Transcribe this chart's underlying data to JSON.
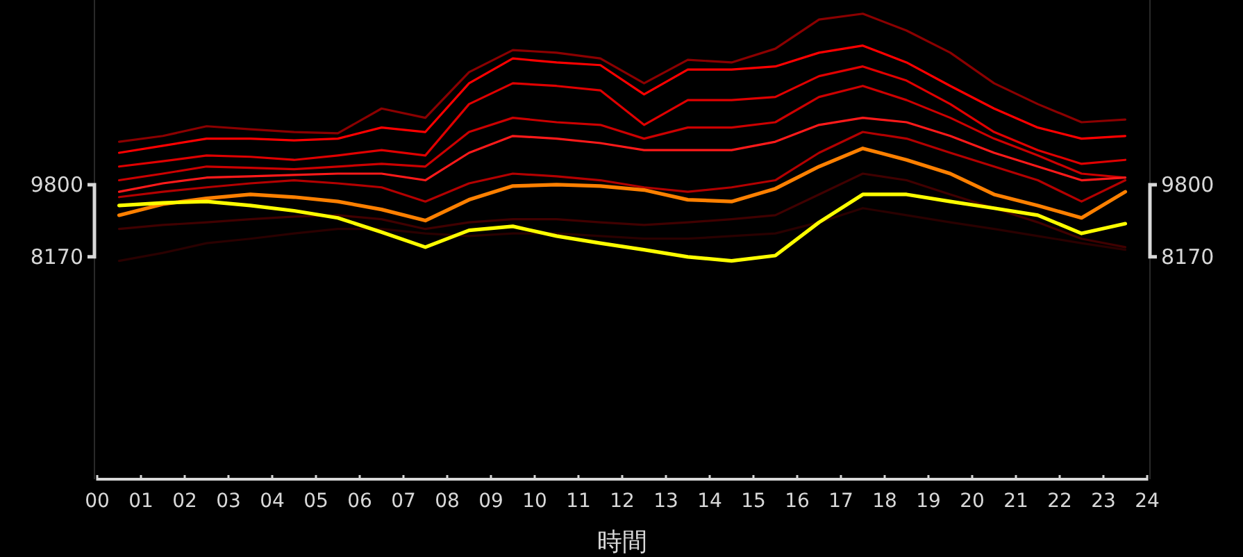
{
  "chart_data": {
    "type": "line",
    "xlabel": "時間",
    "x": [
      0.5,
      1.5,
      2.5,
      3.5,
      4.5,
      5.5,
      6.5,
      7.5,
      8.5,
      9.5,
      10.5,
      11.5,
      12.5,
      13.5,
      14.5,
      15.5,
      16.5,
      17.5,
      18.5,
      19.5,
      20.5,
      21.5,
      22.5,
      23.5
    ],
    "xlim": [
      0,
      24
    ],
    "xticks": [
      {
        "value": 0,
        "label": "00"
      },
      {
        "value": 1,
        "label": "01"
      },
      {
        "value": 2,
        "label": "02"
      },
      {
        "value": 3,
        "label": "03"
      },
      {
        "value": 4,
        "label": "04"
      },
      {
        "value": 5,
        "label": "05"
      },
      {
        "value": 6,
        "label": "06"
      },
      {
        "value": 7,
        "label": "07"
      },
      {
        "value": 8,
        "label": "08"
      },
      {
        "value": 9,
        "label": "09"
      },
      10,
      11,
      12,
      13,
      14,
      15,
      16,
      17,
      18,
      19,
      20,
      21,
      22,
      23,
      24
    ],
    "ylim": [
      3150,
      13970
    ],
    "yticks": [
      8170,
      9800
    ],
    "y2lim": [
      3150,
      13970
    ],
    "y2ticks": [
      8170,
      9800
    ],
    "series": [
      {
        "color": "#2a0000",
        "values": [
          8080,
          8260,
          8480,
          8580,
          8700,
          8800,
          8800,
          8700,
          8640,
          8700,
          8700,
          8640,
          8580,
          8580,
          8640,
          8700,
          8950,
          9270,
          9110,
          8950,
          8800,
          8640,
          8480,
          8330
        ]
      },
      {
        "color": "#400000",
        "values": [
          8800,
          8890,
          8950,
          9020,
          9080,
          9110,
          9020,
          8800,
          8950,
          9020,
          9020,
          8950,
          8890,
          8950,
          9020,
          9110,
          9580,
          10050,
          9900,
          9580,
          9270,
          8950,
          8580,
          8390
        ]
      },
      {
        "color": "#8b0000",
        "values": [
          10770,
          10900,
          11120,
          11050,
          10990,
          10960,
          11520,
          11310,
          12340,
          12840,
          12780,
          12650,
          12090,
          12620,
          12560,
          12870,
          13530,
          13660,
          13280,
          12780,
          12090,
          11620,
          11210,
          11270
        ]
      },
      {
        "color": "#b30000",
        "values": [
          9520,
          9640,
          9740,
          9830,
          9900,
          9830,
          9740,
          9420,
          9830,
          10050,
          9990,
          9900,
          9740,
          9640,
          9740,
          9900,
          10520,
          10990,
          10840,
          10520,
          10210,
          9900,
          9420,
          9900
        ]
      },
      {
        "color": "#cc0000",
        "values": [
          9900,
          10050,
          10210,
          10180,
          10150,
          10210,
          10270,
          10210,
          10990,
          11310,
          11210,
          11150,
          10840,
          11090,
          11090,
          11210,
          11780,
          12030,
          11710,
          11310,
          10840,
          10460,
          10050,
          9960
        ]
      },
      {
        "color": "#e00000",
        "values": [
          10210,
          10330,
          10460,
          10430,
          10360,
          10460,
          10580,
          10460,
          11620,
          12090,
          12030,
          11930,
          11150,
          11710,
          11710,
          11780,
          12250,
          12470,
          12150,
          11620,
          10990,
          10580,
          10270,
          10360
        ]
      },
      {
        "color": "#ff1a1a",
        "values": [
          9640,
          9830,
          9960,
          9990,
          10020,
          10050,
          10050,
          9900,
          10520,
          10900,
          10840,
          10740,
          10580,
          10580,
          10580,
          10770,
          11150,
          11310,
          11210,
          10900,
          10520,
          10210,
          9900,
          9960
        ]
      },
      {
        "color": "#ff0000",
        "values": [
          10520,
          10680,
          10840,
          10840,
          10800,
          10840,
          11090,
          10990,
          12090,
          12650,
          12560,
          12500,
          11840,
          12400,
          12400,
          12470,
          12780,
          12940,
          12560,
          12030,
          11520,
          11090,
          10840,
          10900
        ]
      },
      {
        "color": "#ff8000",
        "values": [
          9110,
          9360,
          9490,
          9580,
          9520,
          9420,
          9240,
          8990,
          9460,
          9770,
          9800,
          9770,
          9680,
          9460,
          9420,
          9710,
          10210,
          10620,
          10360,
          10050,
          9580,
          9330,
          9050,
          9640
        ]
      },
      {
        "color": "#ffff00",
        "values": [
          9330,
          9390,
          9420,
          9330,
          9210,
          9050,
          8730,
          8390,
          8770,
          8860,
          8640,
          8480,
          8330,
          8170,
          8080,
          8200,
          8950,
          9580,
          9580,
          9420,
          9270,
          9110,
          8700,
          8920
        ]
      }
    ]
  }
}
